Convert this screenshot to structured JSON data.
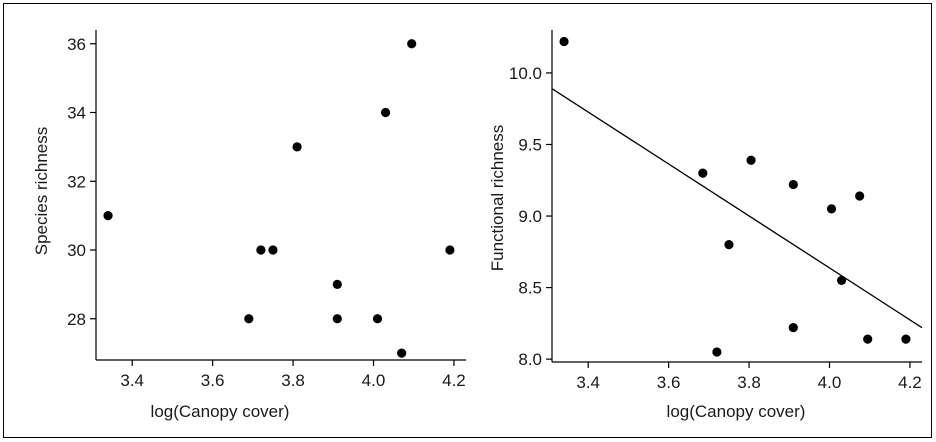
{
  "chart_data": [
    {
      "type": "scatter",
      "xlabel": "log(Canopy cover)",
      "ylabel": "Species richness",
      "xlim": [
        3.31,
        4.23
      ],
      "ylim": [
        26.8,
        36.4
      ],
      "xticks": [
        3.4,
        3.6,
        3.8,
        4.0,
        4.2
      ],
      "xtick_labels": [
        "3.4",
        "3.6",
        "3.8",
        "4.0",
        "4.2"
      ],
      "yticks": [
        28,
        30,
        32,
        34,
        36
      ],
      "ytick_labels": [
        "28",
        "30",
        "32",
        "34",
        "36"
      ],
      "points": [
        {
          "x": 3.34,
          "y": 31
        },
        {
          "x": 3.69,
          "y": 28
        },
        {
          "x": 3.72,
          "y": 30
        },
        {
          "x": 3.75,
          "y": 30
        },
        {
          "x": 3.81,
          "y": 33
        },
        {
          "x": 3.91,
          "y": 29
        },
        {
          "x": 3.91,
          "y": 28
        },
        {
          "x": 4.01,
          "y": 28
        },
        {
          "x": 4.03,
          "y": 34
        },
        {
          "x": 4.07,
          "y": 27
        },
        {
          "x": 4.095,
          "y": 36
        },
        {
          "x": 4.19,
          "y": 30
        }
      ],
      "grid": false
    },
    {
      "type": "scatter",
      "xlabel": "log(Canopy cover)",
      "ylabel": "Functional richness",
      "xlim": [
        3.31,
        4.23
      ],
      "ylim": [
        7.98,
        10.3
      ],
      "xticks": [
        3.4,
        3.6,
        3.8,
        4.0,
        4.2
      ],
      "xtick_labels": [
        "3.4",
        "3.6",
        "3.8",
        "4.0",
        "4.2"
      ],
      "yticks": [
        8.0,
        8.5,
        9.0,
        9.5,
        10.0
      ],
      "ytick_labels": [
        "8.0",
        "8.5",
        "9.0",
        "9.5",
        "10.0"
      ],
      "points": [
        {
          "x": 3.34,
          "y": 10.22
        },
        {
          "x": 3.685,
          "y": 9.3
        },
        {
          "x": 3.72,
          "y": 8.05
        },
        {
          "x": 3.75,
          "y": 8.8
        },
        {
          "x": 3.805,
          "y": 9.39
        },
        {
          "x": 3.91,
          "y": 9.22
        },
        {
          "x": 3.91,
          "y": 8.22
        },
        {
          "x": 4.005,
          "y": 9.05
        },
        {
          "x": 4.03,
          "y": 8.55
        },
        {
          "x": 4.075,
          "y": 9.14
        },
        {
          "x": 4.095,
          "y": 8.14
        },
        {
          "x": 4.19,
          "y": 8.14
        }
      ],
      "fit_line": {
        "x": [
          3.31,
          4.23
        ],
        "y": [
          9.89,
          8.22
        ]
      },
      "grid": false
    }
  ]
}
